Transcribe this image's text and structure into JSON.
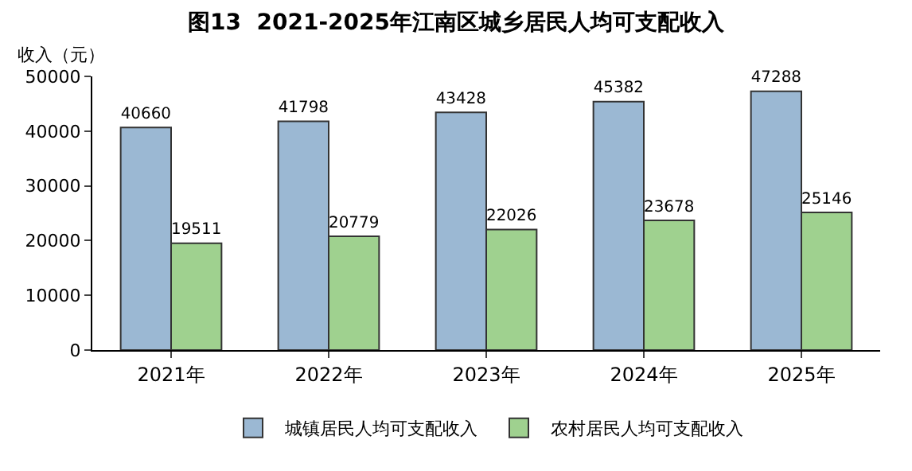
{
  "chart_data": {
    "type": "bar",
    "title": "图13  2021-2025年江南区城乡居民人均可支配收入",
    "ylabel": "收入（元）",
    "categories": [
      "2021年",
      "2022年",
      "2023年",
      "2024年",
      "2025年"
    ],
    "series": [
      {
        "name": "城镇居民人均可支配收入",
        "color": "#9bb8d3",
        "values": [
          40660,
          41798,
          43428,
          45382,
          47288
        ]
      },
      {
        "name": "农村居民人均可支配收入",
        "color": "#9fd18f",
        "values": [
          19511,
          20779,
          22026,
          23678,
          25146
        ]
      }
    ],
    "ylim": [
      0,
      50000
    ],
    "yticks": [
      0,
      10000,
      20000,
      30000,
      40000,
      50000
    ],
    "grid": false,
    "legend": "bottom",
    "data_labels": true
  }
}
